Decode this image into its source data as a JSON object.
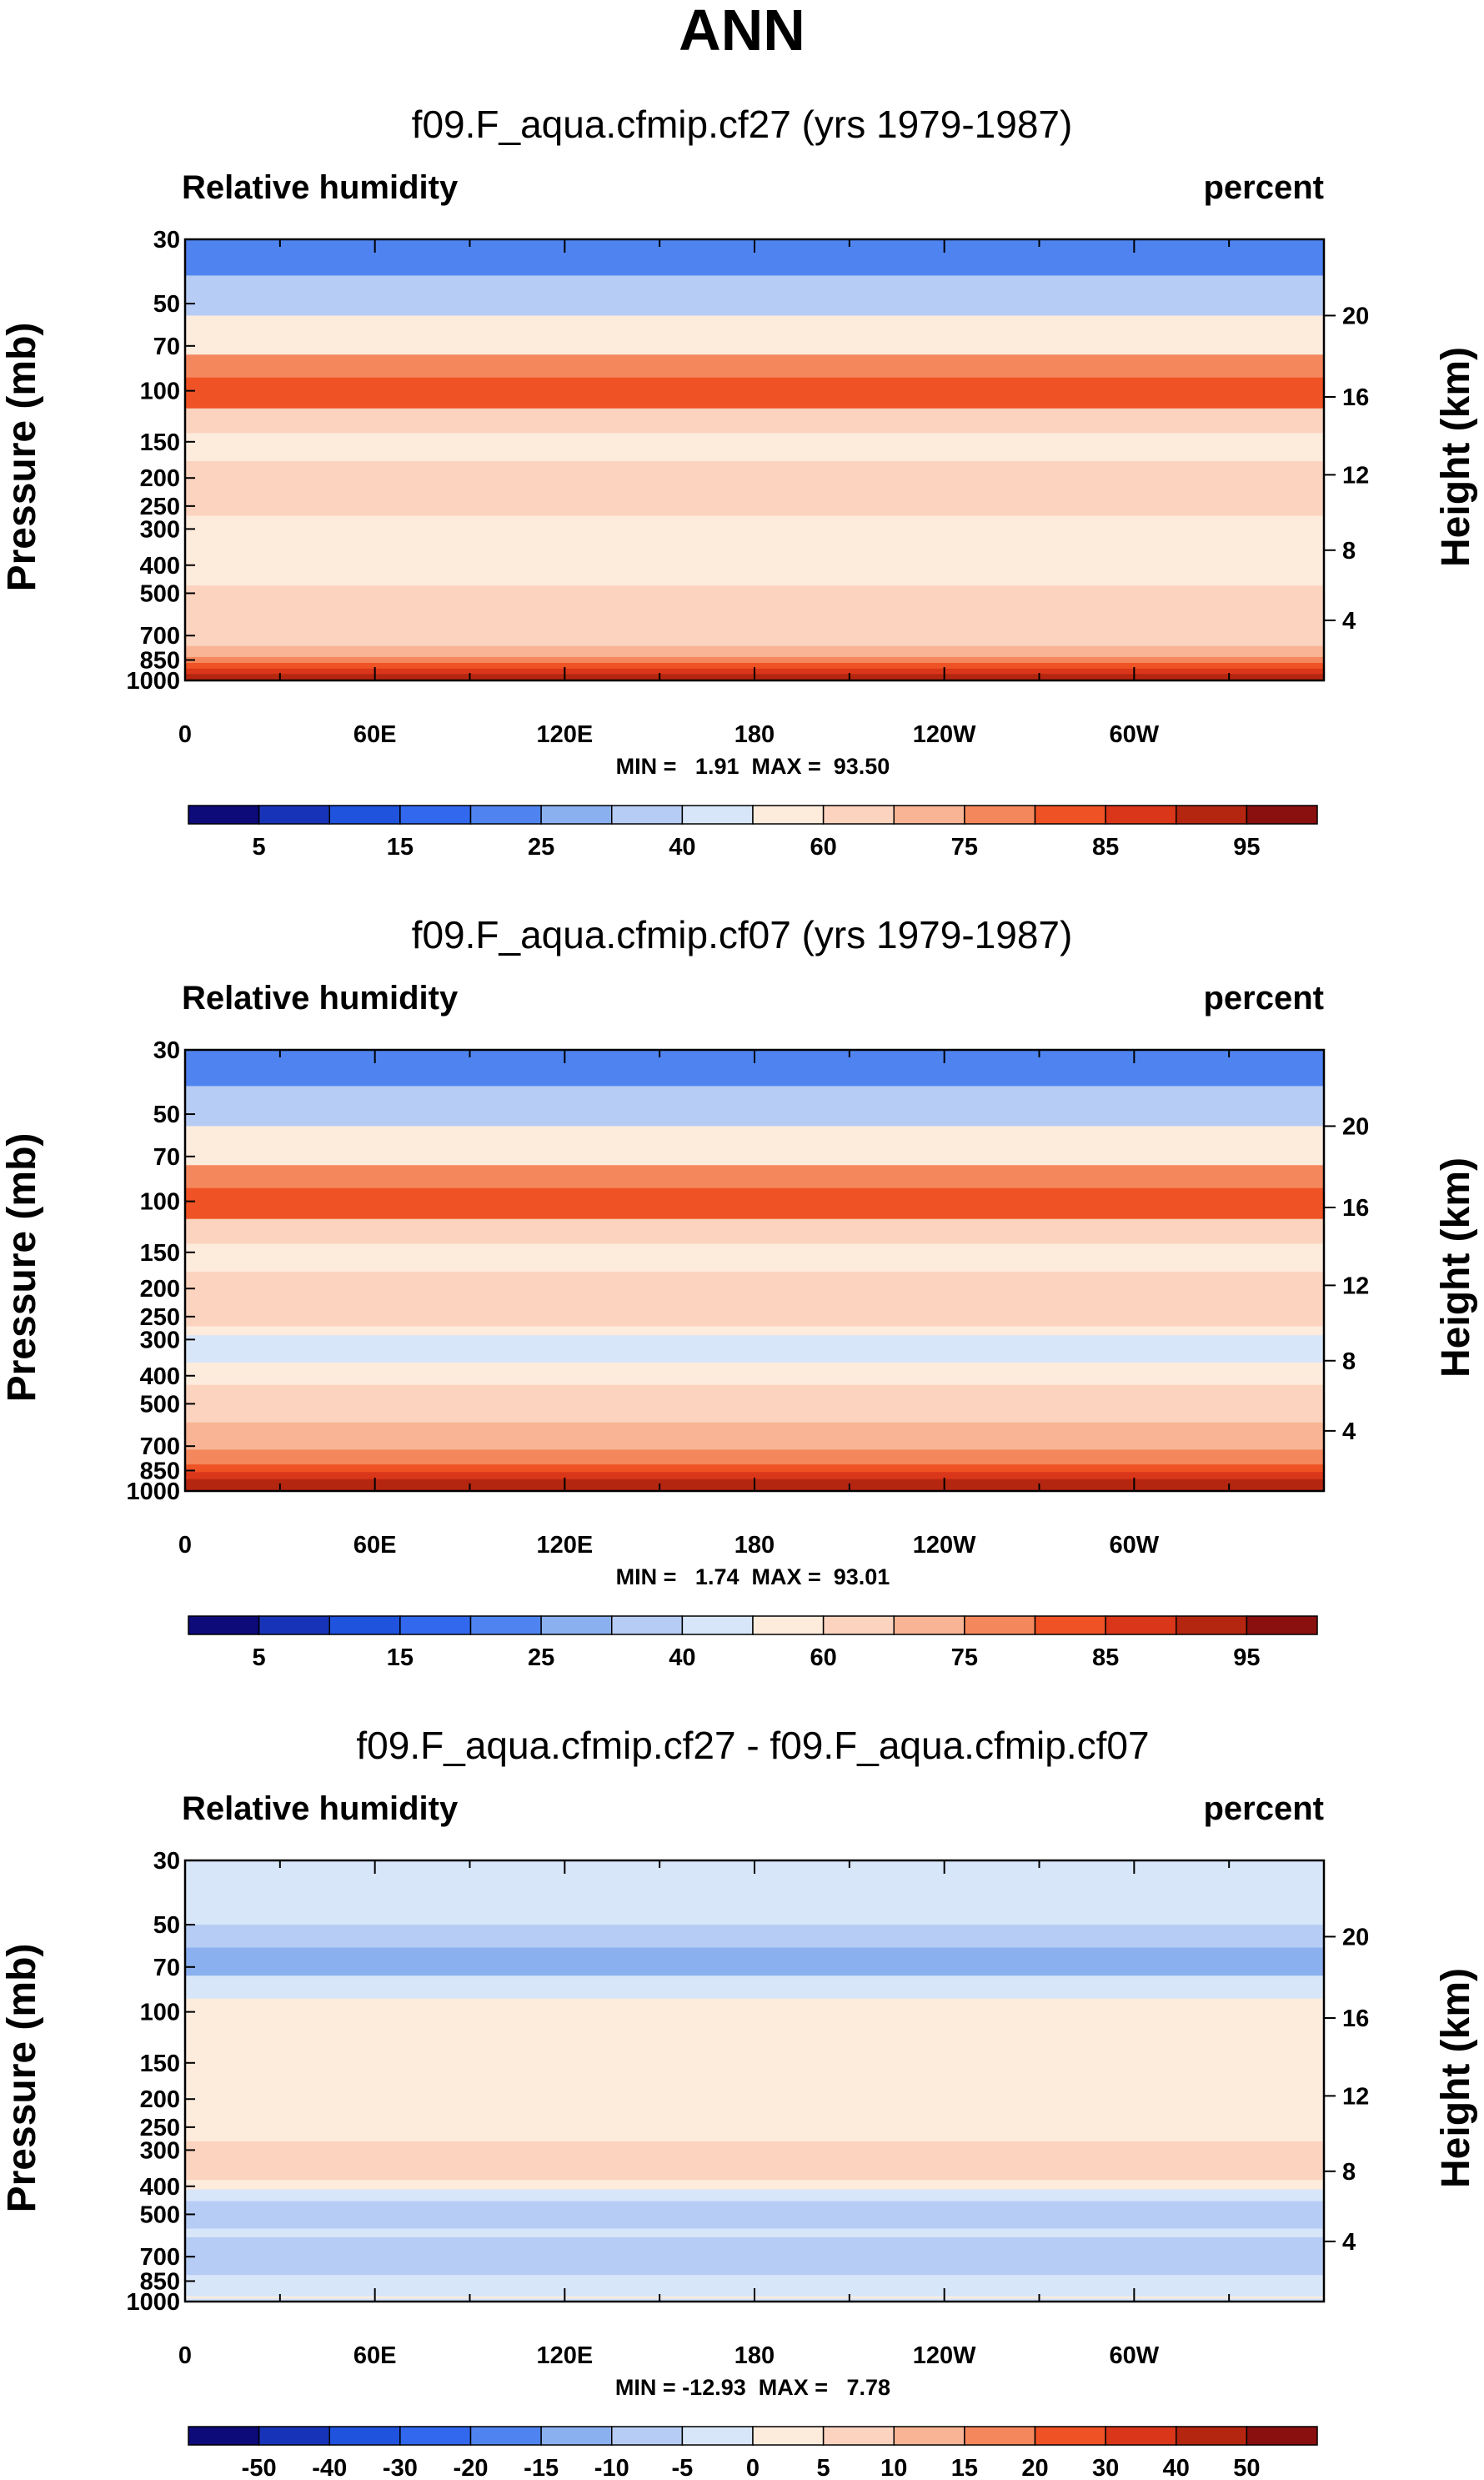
{
  "main_title": "ANN",
  "colors": {
    "absolute": [
      "#0d0a7a",
      "#1734b8",
      "#1f52dd",
      "#3168ee",
      "#4f84f0",
      "#8bb0f0",
      "#b6ccf5",
      "#d8e6fa",
      "#fdebdc",
      "#fbd3be",
      "#f8b494",
      "#f5875c",
      "#ef5224",
      "#d9361a",
      "#b42610",
      "#8a0f0f"
    ],
    "difference": [
      "#0d0a7a",
      "#1734b8",
      "#1f52dd",
      "#3168ee",
      "#4f84f0",
      "#8bb0f0",
      "#b6ccf5",
      "#d8e6fa",
      "#fdebdc",
      "#fbd3be",
      "#f8b494",
      "#f5875c",
      "#ef5224",
      "#d9361a",
      "#b42610",
      "#8a0f0f"
    ]
  },
  "chart_data": [
    {
      "type": "heatmap",
      "title": "f09.F_aqua.cfmip.cf27 (yrs 1979-1987)",
      "left_label": "Relative humidity",
      "right_label": "percent",
      "ylabel": "Pressure (mb)",
      "y2label": "Height (km)",
      "x_ticks": [
        "0",
        "60E",
        "120E",
        "180",
        "120W",
        "60W"
      ],
      "y_ticks": [
        "30",
        "50",
        "70",
        "100",
        "150",
        "200",
        "250",
        "300",
        "400",
        "500",
        "700",
        "850",
        "1000"
      ],
      "y2_ticks": [
        "20",
        "16",
        "12",
        "8",
        "4"
      ],
      "min_max_text": "MIN =   1.91  MAX =  93.50",
      "colorbar_labels": [
        "5",
        "15",
        "25",
        "40",
        "60",
        "75",
        "85",
        "95"
      ],
      "palette": "absolute",
      "layers": [
        {
          "p": 30,
          "c": 2
        },
        {
          "p": 40,
          "c": 4
        },
        {
          "p": 55,
          "c": 6
        },
        {
          "p": 75,
          "c": 8
        },
        {
          "p": 90,
          "c": 11
        },
        {
          "p": 115,
          "c": 12
        },
        {
          "p": 140,
          "c": 9
        },
        {
          "p": 175,
          "c": 8
        },
        {
          "p": 270,
          "c": 9
        },
        {
          "p": 470,
          "c": 8
        },
        {
          "p": 760,
          "c": 9
        },
        {
          "p": 830,
          "c": 10
        },
        {
          "p": 870,
          "c": 11
        },
        {
          "p": 910,
          "c": 12
        },
        {
          "p": 950,
          "c": 13
        },
        {
          "p": 1000,
          "c": 14
        }
      ]
    },
    {
      "type": "heatmap",
      "title": "f09.F_aqua.cfmip.cf07 (yrs 1979-1987)",
      "left_label": "Relative humidity",
      "right_label": "percent",
      "ylabel": "Pressure (mb)",
      "y2label": "Height (km)",
      "x_ticks": [
        "0",
        "60E",
        "120E",
        "180",
        "120W",
        "60W"
      ],
      "y_ticks": [
        "30",
        "50",
        "70",
        "100",
        "150",
        "200",
        "250",
        "300",
        "400",
        "500",
        "700",
        "850",
        "1000"
      ],
      "y2_ticks": [
        "20",
        "16",
        "12",
        "8",
        "4"
      ],
      "min_max_text": "MIN =   1.74  MAX =  93.01",
      "colorbar_labels": [
        "5",
        "15",
        "25",
        "40",
        "60",
        "75",
        "85",
        "95"
      ],
      "palette": "absolute",
      "layers": [
        {
          "p": 30,
          "c": 2
        },
        {
          "p": 40,
          "c": 4
        },
        {
          "p": 55,
          "c": 6
        },
        {
          "p": 75,
          "c": 8
        },
        {
          "p": 90,
          "c": 11
        },
        {
          "p": 115,
          "c": 12
        },
        {
          "p": 140,
          "c": 9
        },
        {
          "p": 175,
          "c": 8
        },
        {
          "p": 270,
          "c": 9
        },
        {
          "p": 290,
          "c": 8
        },
        {
          "p": 360,
          "c": 7
        },
        {
          "p": 430,
          "c": 8
        },
        {
          "p": 580,
          "c": 9
        },
        {
          "p": 720,
          "c": 10
        },
        {
          "p": 810,
          "c": 11
        },
        {
          "p": 860,
          "c": 12
        },
        {
          "p": 910,
          "c": 13
        },
        {
          "p": 1000,
          "c": 14
        }
      ]
    },
    {
      "type": "heatmap",
      "title": "f09.F_aqua.cfmip.cf27 - f09.F_aqua.cfmip.cf07",
      "left_label": "Relative humidity",
      "right_label": "percent",
      "ylabel": "Pressure (mb)",
      "y2label": "Height (km)",
      "x_ticks": [
        "0",
        "60E",
        "120E",
        "180",
        "120W",
        "60W"
      ],
      "y_ticks": [
        "30",
        "50",
        "70",
        "100",
        "150",
        "200",
        "250",
        "300",
        "400",
        "500",
        "700",
        "850",
        "1000"
      ],
      "y2_ticks": [
        "20",
        "16",
        "12",
        "8",
        "4"
      ],
      "min_max_text": "MIN = -12.93  MAX =   7.78",
      "colorbar_labels": [
        "-50",
        "-40",
        "-30",
        "-20",
        "-15",
        "-10",
        "-5",
        "0",
        "5",
        "10",
        "15",
        "20",
        "30",
        "40",
        "50"
      ],
      "palette": "difference",
      "layers": [
        {
          "p": 50,
          "c": 7
        },
        {
          "p": 60,
          "c": 6
        },
        {
          "p": 75,
          "c": 5
        },
        {
          "p": 90,
          "c": 7
        },
        {
          "p": 280,
          "c": 8
        },
        {
          "p": 380,
          "c": 9
        },
        {
          "p": 410,
          "c": 8
        },
        {
          "p": 450,
          "c": 7
        },
        {
          "p": 560,
          "c": 6
        },
        {
          "p": 600,
          "c": 7
        },
        {
          "p": 810,
          "c": 6
        },
        {
          "p": 960,
          "c": 7
        },
        {
          "p": 975,
          "c": 8
        },
        {
          "p": 1000,
          "c": 7
        }
      ]
    }
  ]
}
